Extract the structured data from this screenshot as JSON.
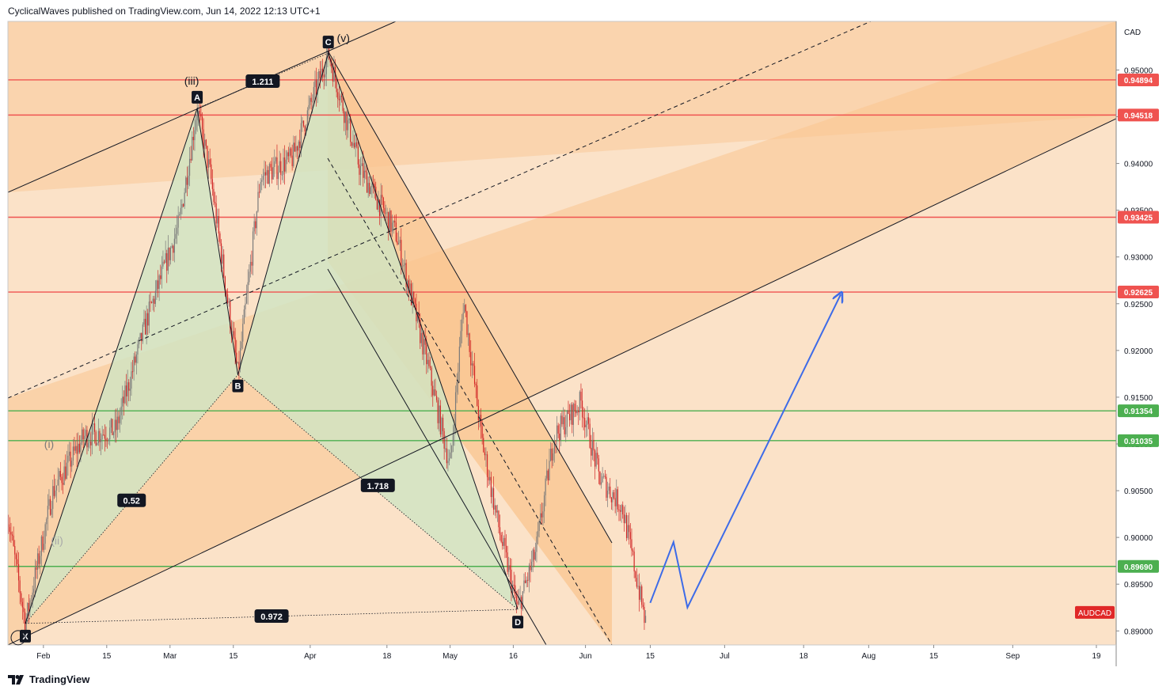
{
  "header": {
    "attribution": "CyclicalWaves published on TradingView.com, Jun 14, 2022 12:13 UTC+1"
  },
  "footer": {
    "brand": "TradingView",
    "logo_icon": "tradingview-logo-icon"
  },
  "colors": {
    "up_candle": "#7a7a7a",
    "down_candle": "#d22828",
    "resistance_line": "#ef5350",
    "support_line": "#4caf50",
    "projection": "#3d6be8",
    "harmonic_fill": "#cfe5c3",
    "channel_fill": "#f9c48f"
  },
  "chart_data": {
    "type": "candlestick",
    "symbol": "AUDCAD",
    "currency": "CAD",
    "ylim": [
      0.8885,
      0.9552
    ],
    "y_ticks": [
      "0.95000",
      "0.94500",
      "0.94000",
      "0.93500",
      "0.93000",
      "0.92500",
      "0.92000",
      "0.91500",
      "0.91000",
      "0.90500",
      "0.90000",
      "0.89500",
      "0.89000"
    ],
    "x_ticks": [
      "Feb",
      "15",
      "Mar",
      "15",
      "Apr",
      "18",
      "May",
      "16",
      "Jun",
      "15",
      "Jul",
      "18",
      "Aug",
      "15",
      "Sep",
      "19"
    ],
    "horizontal_levels": [
      {
        "value": 0.94894,
        "label": "0.94894",
        "kind": "resistance"
      },
      {
        "value": 0.94518,
        "label": "0.94518",
        "kind": "resistance"
      },
      {
        "value": 0.93425,
        "label": "0.93425",
        "kind": "resistance"
      },
      {
        "value": 0.92625,
        "label": "0.92625",
        "kind": "resistance"
      },
      {
        "value": 0.91354,
        "label": "0.91354",
        "kind": "support"
      },
      {
        "value": 0.91035,
        "label": "0.91035",
        "kind": "support"
      },
      {
        "value": 0.8969,
        "label": "0.89690",
        "kind": "support"
      }
    ],
    "harmonic_points": [
      {
        "label": "X",
        "date": "2022-01-28",
        "price": 0.8908
      },
      {
        "label": "A",
        "date": "2022-03-07",
        "price": 0.9459
      },
      {
        "label": "B",
        "date": "2022-03-16",
        "price": 0.9174
      },
      {
        "label": "C",
        "date": "2022-04-05",
        "price": 0.9518
      },
      {
        "label": "D",
        "date": "2022-05-17",
        "price": 0.8923
      }
    ],
    "ratios": [
      "1.211",
      "0.52",
      "1.718",
      "0.972"
    ],
    "wave_labels": [
      "(iii)",
      "(v)",
      "(i)",
      "(ii)"
    ],
    "close_price": 0.8908,
    "price_series": [
      {
        "date": "2022-01-24",
        "price": 0.9027
      },
      {
        "date": "2022-01-28",
        "price": 0.8908
      },
      {
        "date": "2022-02-03",
        "price": 0.9048
      },
      {
        "date": "2022-02-10",
        "price": 0.9108
      },
      {
        "date": "2022-02-17",
        "price": 0.9115
      },
      {
        "date": "2022-02-24",
        "price": 0.9235
      },
      {
        "date": "2022-03-03",
        "price": 0.9335
      },
      {
        "date": "2022-03-07",
        "price": 0.9459
      },
      {
        "date": "2022-03-10",
        "price": 0.9385
      },
      {
        "date": "2022-03-16",
        "price": 0.9174
      },
      {
        "date": "2022-03-21",
        "price": 0.9385
      },
      {
        "date": "2022-03-28",
        "price": 0.9405
      },
      {
        "date": "2022-04-05",
        "price": 0.9518
      },
      {
        "date": "2022-04-12",
        "price": 0.9395
      },
      {
        "date": "2022-04-20",
        "price": 0.9325
      },
      {
        "date": "2022-04-27",
        "price": 0.9185
      },
      {
        "date": "2022-05-02",
        "price": 0.9075
      },
      {
        "date": "2022-05-05",
        "price": 0.9255
      },
      {
        "date": "2022-05-09",
        "price": 0.9105
      },
      {
        "date": "2022-05-13",
        "price": 0.9005
      },
      {
        "date": "2022-05-17",
        "price": 0.8923
      },
      {
        "date": "2022-05-21",
        "price": 0.8985
      },
      {
        "date": "2022-05-25",
        "price": 0.9108
      },
      {
        "date": "2022-05-31",
        "price": 0.9145
      },
      {
        "date": "2022-06-04",
        "price": 0.9065
      },
      {
        "date": "2022-06-09",
        "price": 0.9032
      },
      {
        "date": "2022-06-14",
        "price": 0.8908
      }
    ],
    "projection_path": [
      {
        "date": "2022-06-15",
        "price": 0.893
      },
      {
        "date": "2022-06-20",
        "price": 0.8995
      },
      {
        "date": "2022-06-23",
        "price": 0.8925
      },
      {
        "date": "2022-07-26",
        "price": 0.926
      }
    ]
  }
}
